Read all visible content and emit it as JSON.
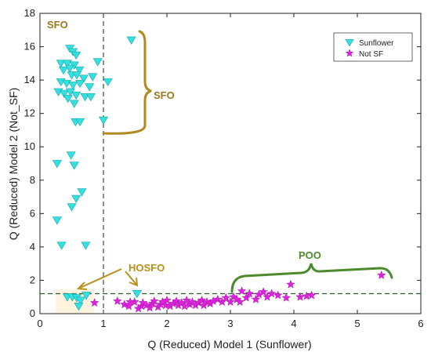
{
  "chart_data": {
    "type": "scatter",
    "title": "",
    "xlabel": "Q (Reduced) Model 1 (Sunflower)",
    "ylabel": "Q (Reduced) Model 2 (Not_SF)",
    "xlim": [
      0,
      6
    ],
    "ylim": [
      0,
      18
    ],
    "xticks": [
      0,
      1,
      2,
      3,
      4,
      5,
      6
    ],
    "yticks": [
      0,
      2,
      4,
      6,
      8,
      10,
      12,
      14,
      16,
      18
    ],
    "grid": false,
    "legend_position": "top-right",
    "thresholds": {
      "x": 1.0,
      "y": 1.2
    },
    "series": [
      {
        "name": "Sunflower",
        "marker": "triangle-down",
        "color": "#35e0e0",
        "points": [
          [
            1.44,
            16.4
          ],
          [
            0.47,
            15.9
          ],
          [
            0.52,
            15.7
          ],
          [
            0.57,
            15.5
          ],
          [
            0.33,
            15.0
          ],
          [
            0.43,
            15.0
          ],
          [
            0.54,
            14.9
          ],
          [
            0.91,
            15.1
          ],
          [
            0.37,
            14.6
          ],
          [
            0.47,
            14.7
          ],
          [
            0.62,
            14.6
          ],
          [
            0.5,
            14.3
          ],
          [
            0.58,
            14.3
          ],
          [
            0.69,
            14.1
          ],
          [
            0.83,
            14.2
          ],
          [
            0.33,
            13.9
          ],
          [
            0.42,
            13.8
          ],
          [
            0.52,
            13.7
          ],
          [
            0.63,
            13.8
          ],
          [
            1.07,
            13.9
          ],
          [
            0.78,
            13.6
          ],
          [
            0.29,
            13.3
          ],
          [
            0.38,
            13.2
          ],
          [
            0.48,
            13.3
          ],
          [
            0.57,
            13.1
          ],
          [
            0.71,
            13.0
          ],
          [
            0.8,
            13.0
          ],
          [
            0.44,
            12.9
          ],
          [
            0.54,
            12.6
          ],
          [
            1.0,
            11.6
          ],
          [
            0.56,
            11.5
          ],
          [
            0.63,
            11.5
          ],
          [
            0.49,
            9.5
          ],
          [
            0.54,
            8.9
          ],
          [
            0.27,
            9.0
          ],
          [
            0.66,
            7.3
          ],
          [
            0.57,
            6.9
          ],
          [
            0.5,
            6.4
          ],
          [
            0.27,
            5.6
          ],
          [
            0.34,
            4.1
          ],
          [
            0.72,
            4.1
          ],
          [
            0.43,
            1.0
          ],
          [
            0.51,
            1.0
          ],
          [
            0.58,
            0.95
          ],
          [
            0.64,
            0.8
          ],
          [
            0.73,
            1.1
          ],
          [
            0.61,
            0.45
          ],
          [
            1.53,
            1.2
          ]
        ]
      },
      {
        "name": "Not SF",
        "marker": "star",
        "color": "#dd22dd",
        "points": [
          [
            0.86,
            0.65
          ],
          [
            1.22,
            0.75
          ],
          [
            1.33,
            0.55
          ],
          [
            1.4,
            0.45
          ],
          [
            1.49,
            0.7
          ],
          [
            1.55,
            0.3
          ],
          [
            1.6,
            0.45
          ],
          [
            1.62,
            0.65
          ],
          [
            1.68,
            0.5
          ],
          [
            1.73,
            0.35
          ],
          [
            1.77,
            0.6
          ],
          [
            1.8,
            0.75
          ],
          [
            1.86,
            0.4
          ],
          [
            1.9,
            0.55
          ],
          [
            1.93,
            0.7
          ],
          [
            1.98,
            0.5
          ],
          [
            2.0,
            0.8
          ],
          [
            2.05,
            0.45
          ],
          [
            2.1,
            0.6
          ],
          [
            2.15,
            0.75
          ],
          [
            2.18,
            0.5
          ],
          [
            2.23,
            0.65
          ],
          [
            2.28,
            0.45
          ],
          [
            2.31,
            0.8
          ],
          [
            2.36,
            0.55
          ],
          [
            2.4,
            0.7
          ],
          [
            2.45,
            0.5
          ],
          [
            2.5,
            0.65
          ],
          [
            2.55,
            0.8
          ],
          [
            2.58,
            0.5
          ],
          [
            2.63,
            0.7
          ],
          [
            2.68,
            0.6
          ],
          [
            2.8,
            0.85
          ],
          [
            2.87,
            0.7
          ],
          [
            2.93,
            0.95
          ],
          [
            3.0,
            0.7
          ],
          [
            3.05,
            1.0
          ],
          [
            3.1,
            0.85
          ],
          [
            3.15,
            0.7
          ],
          [
            3.18,
            1.35
          ],
          [
            3.25,
            0.95
          ],
          [
            3.3,
            1.2
          ],
          [
            3.4,
            0.85
          ],
          [
            3.45,
            1.15
          ],
          [
            3.52,
            1.3
          ],
          [
            3.58,
            1.0
          ],
          [
            3.65,
            1.2
          ],
          [
            3.75,
            1.1
          ],
          [
            3.88,
            0.95
          ],
          [
            3.95,
            1.75
          ],
          [
            4.1,
            1.0
          ],
          [
            4.2,
            1.05
          ],
          [
            4.28,
            1.1
          ],
          [
            5.38,
            2.3
          ],
          [
            1.42,
            0.7
          ],
          [
            2.73,
            0.75
          ]
        ]
      }
    ],
    "annotations": [
      {
        "text": "SFO",
        "color": "#9a7a1c"
      },
      {
        "text": "SFO",
        "color": "#9a7a1c"
      },
      {
        "text": "HOSFO",
        "color": "#b8901c"
      },
      {
        "text": "POO",
        "color": "#4b8b2e"
      }
    ]
  }
}
